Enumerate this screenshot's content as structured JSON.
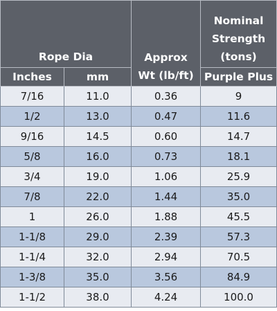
{
  "header": {
    "rope_dia": "Rope Dia",
    "approx_wt": [
      "Approx",
      "Wt (lb/ft)"
    ],
    "nominal_strength": [
      "Nominal",
      "Strength",
      "(tons)"
    ],
    "inches": "Inches",
    "mm": "mm",
    "purple_plus": "Purple Plus"
  },
  "rows": [
    [
      "7/16",
      "11.0",
      "0.36",
      "9"
    ],
    [
      "1/2",
      "13.0",
      "0.47",
      "11.6"
    ],
    [
      "9/16",
      "14.5",
      "0.60",
      "14.7"
    ],
    [
      "5/8",
      "16.0",
      "0.73",
      "18.1"
    ],
    [
      "3/4",
      "19.0",
      "1.06",
      "25.9"
    ],
    [
      "7/8",
      "22.0",
      "1.44",
      "35.0"
    ],
    [
      "1",
      "26.0",
      "1.88",
      "45.5"
    ],
    [
      "1-1/8",
      "29.0",
      "2.39",
      "57.3"
    ],
    [
      "1-1/4",
      "32.0",
      "2.94",
      "70.5"
    ],
    [
      "1-3/8",
      "35.0",
      "3.56",
      "84.9"
    ],
    [
      "1-1/2",
      "38.0",
      "4.24",
      "100.0"
    ]
  ],
  "colors": {
    "header_bg": "#5c6068",
    "row_light": "#e8ebf1",
    "row_dark": "#b9c8de"
  }
}
